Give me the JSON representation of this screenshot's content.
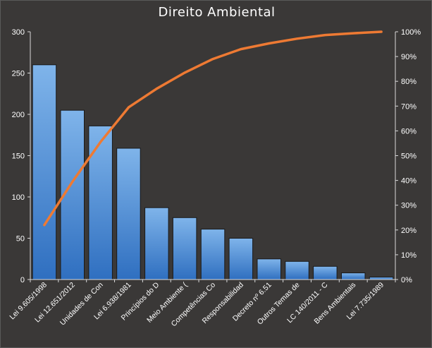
{
  "chart_data": {
    "type": "bar",
    "title": "Direito  Ambiental",
    "categories": [
      "Lei 9.605/1998",
      "Lei 12.651/2012",
      "Unidades de Con",
      "Lei 6.938/1981",
      "Princípios do D",
      "Meio Ambiente (",
      "Competências Co",
      "Responsabilidad",
      "Decreto nº 6.51",
      "Outros Temas de",
      "LC 140/2011 - C",
      "Bens Ambientais",
      "Lei 7.735/1989"
    ],
    "series": [
      {
        "type": "bar",
        "values": [
          260,
          205,
          186,
          159,
          87,
          75,
          61,
          50,
          25,
          22,
          16,
          8,
          3
        ]
      },
      {
        "type": "line",
        "axis": "right",
        "values": [
          22.0,
          39.5,
          55.5,
          69.5,
          77.0,
          83.5,
          89.0,
          93.0,
          95.3,
          97.2,
          98.7,
          99.4,
          100.0
        ]
      }
    ],
    "y_left": {
      "min": 0,
      "max": 300,
      "ticks": [
        0,
        50,
        100,
        150,
        200,
        250,
        300
      ]
    },
    "y_right": {
      "min": 0,
      "max": 100,
      "ticks": [
        "0%",
        "10%",
        "20%",
        "30%",
        "40%",
        "50%",
        "60%",
        "70%",
        "80%",
        "90%",
        "100%"
      ]
    },
    "grid": false,
    "legend": "none",
    "colors": {
      "background": "#3a3837",
      "bar_fill_top": "#7fb4ea",
      "bar_fill_bottom": "#2f6fc0",
      "bar_stroke": "#1a1a1a",
      "line": "#ee7a33",
      "axis": "#d9d9d9",
      "text": "#ffffff"
    }
  }
}
